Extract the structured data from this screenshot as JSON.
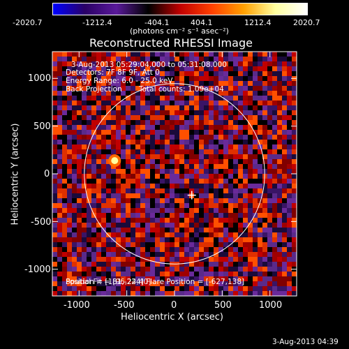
{
  "colorbar": {
    "ticks": [
      "-2020.7",
      "-1212.4",
      "-404.1",
      "404.1",
      "1212.4",
      "2020.7"
    ],
    "units": "(photons cm⁻² s⁻¹ asec⁻²)",
    "colors": [
      "#0000ff",
      "#2a0066",
      "#5a1a9a",
      "#000000",
      "#c00000",
      "#ff4000",
      "#ffa000",
      "#ffffa0",
      "#ffffff"
    ]
  },
  "title": "Reconstructed RHESSI Image",
  "info": {
    "time_range": "3-Aug-2013 05:29:04.000 to 05:31:08.000",
    "detectors": "Detectors: 7F 8F 9F, Att 0",
    "energy": "Energy Range: 6.0 - 25.0 keV",
    "method": "Back Projection",
    "counts": "Total counts: 1.09e+04",
    "bottom_overlap": "Position = [181,-224] Flare Position = [-627,138]",
    "bottom_overlap2": "Spatial Fit = [96,24,40]"
  },
  "axes": {
    "xlabel": "Heliocentric X (arcsec)",
    "ylabel": "Heliocentric Y (arcsec)",
    "xticks": [
      "-1000",
      "-500",
      "0",
      "500",
      "1000"
    ],
    "yticks": [
      "1000",
      "500",
      "0",
      "-500",
      "-1000"
    ],
    "xtick_values": [
      -1000,
      -500,
      0,
      500,
      1000
    ],
    "ytick_values": [
      1000,
      500,
      0,
      -500,
      -1000
    ],
    "xlim": [
      -1280,
      1280
    ],
    "ylim": [
      -1280,
      1280
    ]
  },
  "markers": {
    "limb_radius_arcsec": 945,
    "cross_position": [
      181,
      -224
    ],
    "bright_source": [
      -627,
      138
    ]
  },
  "footer": {
    "timestamp": "3-Aug-2013 04:39"
  }
}
